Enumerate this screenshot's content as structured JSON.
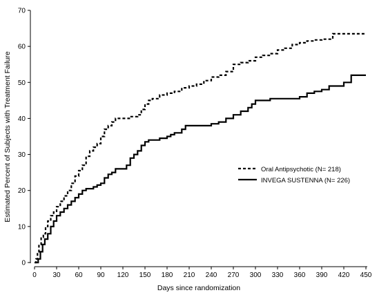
{
  "chart_data": {
    "type": "line",
    "title": "",
    "xlabel": "Days since randomization",
    "ylabel": "Estimated Percent of Subjects with Treatment Failure",
    "xlim": [
      0,
      450
    ],
    "ylim": [
      0,
      70
    ],
    "xticks": [
      0,
      30,
      60,
      90,
      120,
      150,
      180,
      210,
      240,
      270,
      300,
      330,
      360,
      390,
      420,
      450
    ],
    "yticks": [
      0,
      10,
      20,
      30,
      40,
      50,
      60,
      70
    ],
    "grid": false,
    "legend_position": "right-center",
    "series": [
      {
        "name": "Oral Antipsychotic (N= 218)",
        "style": "dashed",
        "color": "#000000",
        "x": [
          0,
          2,
          4,
          6,
          9,
          12,
          15,
          18,
          22,
          26,
          30,
          35,
          40,
          45,
          50,
          55,
          60,
          65,
          70,
          75,
          80,
          85,
          90,
          95,
          100,
          105,
          110,
          115,
          120,
          130,
          140,
          145,
          150,
          155,
          160,
          170,
          180,
          190,
          200,
          210,
          220,
          230,
          240,
          250,
          260,
          270,
          280,
          290,
          300,
          310,
          320,
          330,
          340,
          350,
          360,
          370,
          380,
          390,
          400,
          405,
          410,
          420,
          430,
          450
        ],
        "y": [
          0,
          1,
          3,
          5,
          7,
          8,
          10,
          11.5,
          13,
          14,
          15.5,
          17,
          18.5,
          20,
          22,
          24,
          25.5,
          27,
          29.5,
          31,
          32,
          33,
          35,
          37,
          38,
          39,
          40,
          40,
          40,
          40.5,
          41,
          42.5,
          44,
          45,
          45.5,
          46.5,
          47,
          47.5,
          48.5,
          49,
          49.5,
          50.5,
          51.5,
          52,
          53,
          55,
          55.5,
          56,
          57,
          57.5,
          58,
          59,
          59.5,
          60.5,
          61,
          61.5,
          61.8,
          62,
          62,
          63.5,
          63.5,
          63.5,
          63.5,
          63.5
        ]
      },
      {
        "name": "INVEGA SUSTENNA (N= 226)",
        "style": "solid",
        "color": "#000000",
        "x": [
          0,
          5,
          8,
          11,
          14,
          18,
          22,
          26,
          30,
          35,
          40,
          45,
          50,
          55,
          60,
          65,
          70,
          75,
          80,
          85,
          90,
          95,
          100,
          105,
          110,
          115,
          120,
          125,
          130,
          135,
          140,
          145,
          150,
          155,
          160,
          170,
          180,
          185,
          190,
          200,
          205,
          210,
          220,
          230,
          240,
          250,
          260,
          270,
          280,
          290,
          295,
          300,
          310,
          320,
          330,
          340,
          350,
          360,
          370,
          380,
          390,
          400,
          410,
          420,
          430,
          440,
          450
        ],
        "y": [
          0,
          1,
          3,
          5,
          6.5,
          8,
          10,
          11.5,
          13,
          14,
          15,
          16,
          17,
          18,
          19,
          20,
          20.5,
          20.5,
          21,
          21.5,
          22,
          23.5,
          24.5,
          25,
          26,
          26,
          26,
          27,
          29,
          30,
          31,
          32.5,
          33.5,
          34,
          34,
          34.5,
          35,
          35.5,
          36,
          37,
          38,
          38,
          38,
          38,
          38.5,
          39,
          40,
          41,
          42,
          43,
          44,
          45,
          45,
          45.5,
          45.5,
          45.5,
          45.5,
          46,
          47,
          47.5,
          48,
          49,
          49,
          50,
          52,
          52,
          52
        ]
      }
    ]
  }
}
